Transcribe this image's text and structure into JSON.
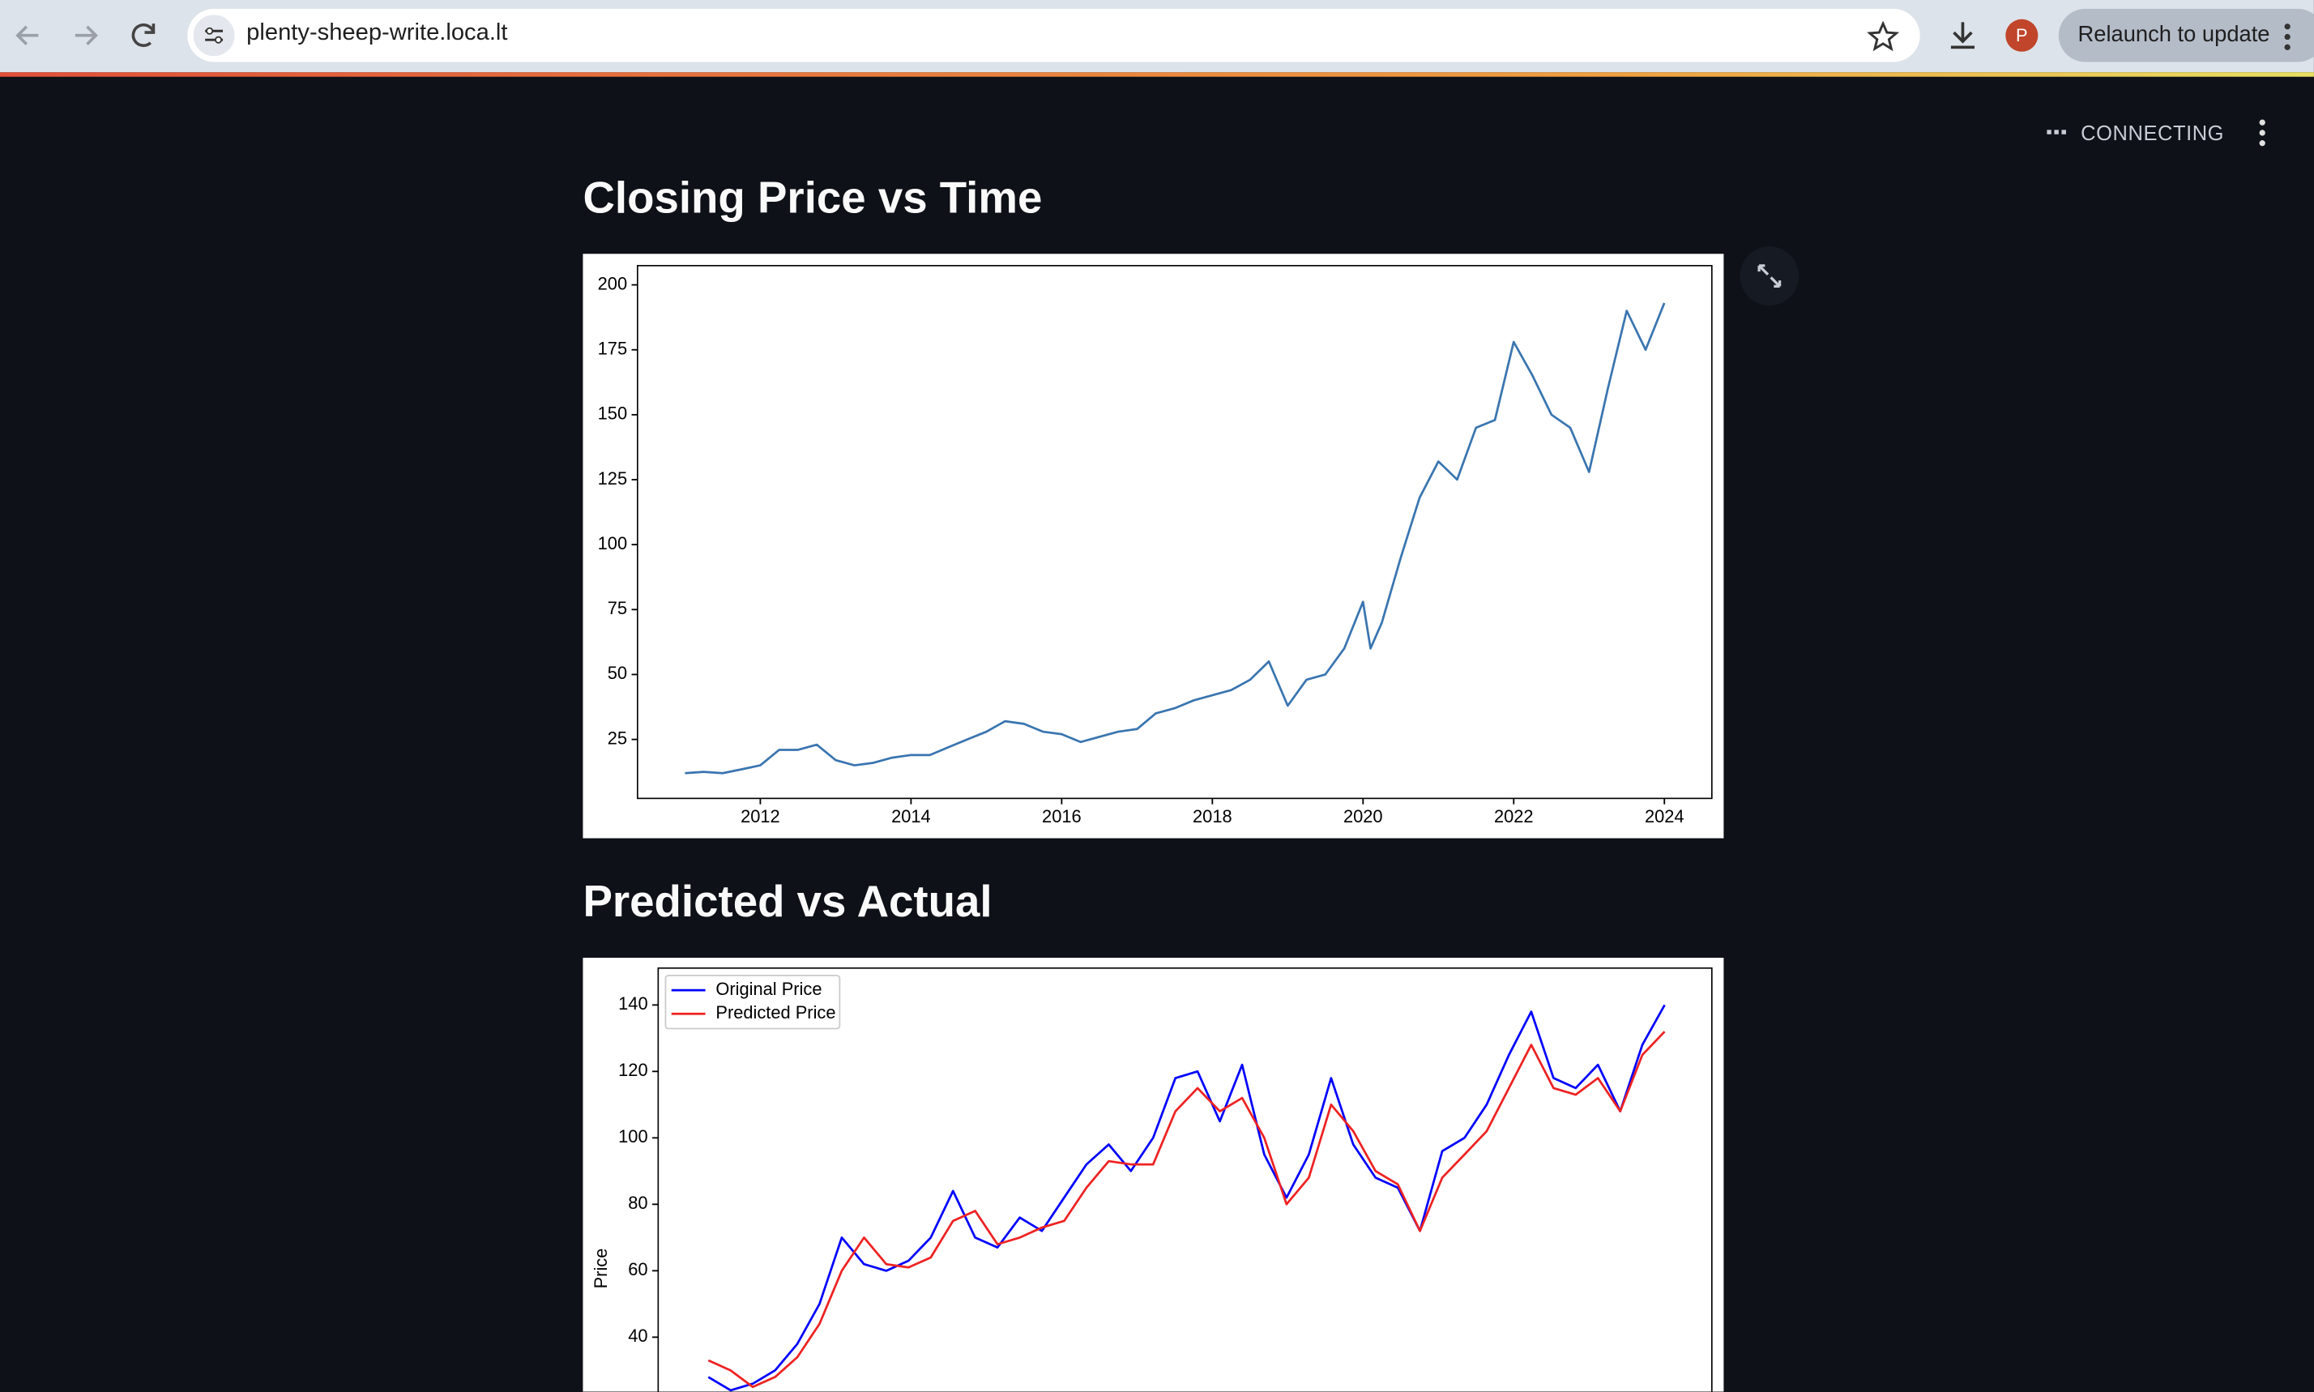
{
  "browser": {
    "url": "plenty-sheep-write.loca.lt",
    "avatar": "P",
    "update_button": "Relaunch to update"
  },
  "app": {
    "status": "CONNECTING"
  },
  "chart_data": [
    {
      "type": "line",
      "title": "Closing Price vs Time",
      "x": [
        2011.0,
        2011.25,
        2011.5,
        2011.75,
        2012.0,
        2012.25,
        2012.5,
        2012.75,
        2013.0,
        2013.25,
        2013.5,
        2013.75,
        2014.0,
        2014.25,
        2014.5,
        2014.75,
        2015.0,
        2015.25,
        2015.5,
        2015.75,
        2016.0,
        2016.25,
        2016.5,
        2016.75,
        2017.0,
        2017.25,
        2017.5,
        2017.75,
        2018.0,
        2018.25,
        2018.5,
        2018.75,
        2019.0,
        2019.25,
        2019.5,
        2019.75,
        2020.0,
        2020.1,
        2020.25,
        2020.5,
        2020.75,
        2021.0,
        2021.25,
        2021.5,
        2021.75,
        2022.0,
        2022.25,
        2022.5,
        2022.75,
        2023.0,
        2023.25,
        2023.5,
        2023.75,
        2024.0
      ],
      "series": [
        {
          "color": "#3a75b0",
          "values": [
            12,
            12.5,
            12,
            13.5,
            15,
            21,
            21,
            23,
            17,
            15,
            16,
            18,
            19,
            19,
            22,
            25,
            28,
            32,
            31,
            28,
            27,
            24,
            26,
            28,
            29,
            35,
            37,
            40,
            42,
            44,
            48,
            55,
            38,
            48,
            50,
            60,
            78,
            60,
            70,
            95,
            118,
            132,
            125,
            145,
            148,
            178,
            165,
            150,
            145,
            128,
            160,
            190,
            175,
            193
          ]
        }
      ],
      "xlim": [
        2010.37,
        2024.63
      ],
      "ylim": [
        2.3,
        207.4
      ],
      "xticks": [
        2012,
        2014,
        2016,
        2018,
        2020,
        2022,
        2024
      ],
      "yticks": [
        25,
        50,
        75,
        100,
        125,
        150,
        175,
        200
      ]
    },
    {
      "type": "line",
      "title": "Predicted vs Actual",
      "ylabel": "Price",
      "legend": "upper left",
      "series": [
        {
          "name": "Original Price",
          "color": "#0000ff",
          "values": [
            28,
            24,
            26,
            30,
            38,
            50,
            70,
            62,
            60,
            63,
            70,
            84,
            70,
            67,
            76,
            72,
            82,
            92,
            98,
            90,
            100,
            118,
            120,
            105,
            122,
            95,
            82,
            95,
            118,
            98,
            88,
            85,
            72,
            96,
            100,
            110,
            125,
            138,
            118,
            115,
            122,
            108,
            128,
            140
          ]
        },
        {
          "name": "Predicted Price",
          "color": "#ee2222",
          "values": [
            33,
            30,
            25,
            28,
            34,
            44,
            60,
            70,
            62,
            61,
            64,
            75,
            78,
            68,
            70,
            73,
            75,
            85,
            93,
            92,
            92,
            108,
            115,
            108,
            112,
            100,
            80,
            88,
            110,
            102,
            90,
            86,
            72,
            88,
            95,
            102,
            115,
            128,
            115,
            113,
            118,
            108,
            125,
            132
          ]
        }
      ],
      "ylim": [
        23.6,
        151.1
      ],
      "yticks": [
        40,
        60,
        80,
        100,
        120,
        140
      ]
    }
  ]
}
